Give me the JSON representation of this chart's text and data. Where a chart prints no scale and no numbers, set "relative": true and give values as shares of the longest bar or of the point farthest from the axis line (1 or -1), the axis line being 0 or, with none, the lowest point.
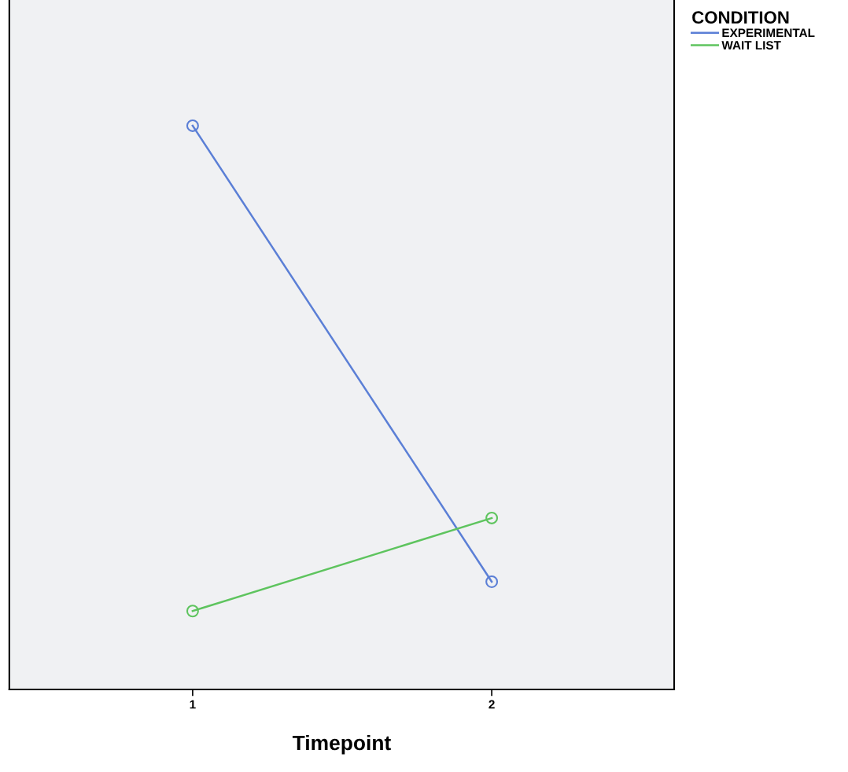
{
  "chart_data": {
    "type": "line",
    "xlabel": "Timepoint",
    "legend_title": "CONDITION",
    "legend": "top right",
    "relative": true,
    "marker": "circle",
    "line_style": "solid",
    "grid": false,
    "categories": [
      "1",
      "2"
    ],
    "series": [
      {
        "name": "EXPERIMENTAL",
        "color": "#5b7fd6",
        "values": [
          1,
          0.191
        ]
      },
      {
        "name": "WAIT LIST",
        "color": "#5ec45e",
        "values": [
          0.139,
          0.304
        ]
      }
    ]
  }
}
